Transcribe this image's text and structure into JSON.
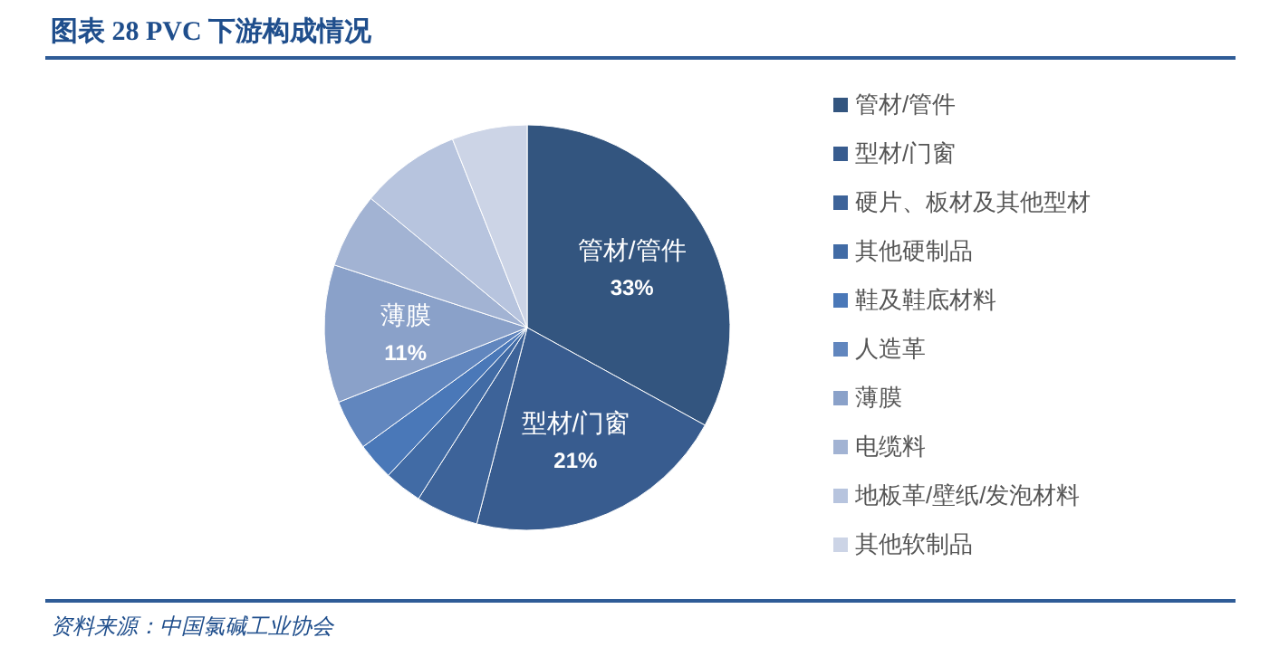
{
  "chart_data": {
    "type": "pie",
    "title": "图表 28   PVC 下游构成情况",
    "categories": [
      "管材/管件",
      "型材/门窗",
      "硬片、板材及其他型材",
      "其他硬制品",
      "鞋及鞋底材料",
      "人造革",
      "薄膜",
      "电缆料",
      "地板革/壁纸/发泡材料",
      "其他软制品"
    ],
    "values": [
      33,
      21,
      5,
      3,
      3,
      4,
      11,
      6,
      8,
      6
    ],
    "value_labels": [
      "33%",
      "21%",
      null,
      null,
      null,
      null,
      "11%",
      null,
      null,
      null
    ],
    "colors": [
      "#33557f",
      "#385c8f",
      "#3d6399",
      "#416ba5",
      "#4a78b8",
      "#6186be",
      "#8aa1c9",
      "#a2b3d3",
      "#b7c4de",
      "#ccd4e6"
    ],
    "legend": "right",
    "annotations": [
      "资料来源：中国氯碱工业协会"
    ]
  }
}
